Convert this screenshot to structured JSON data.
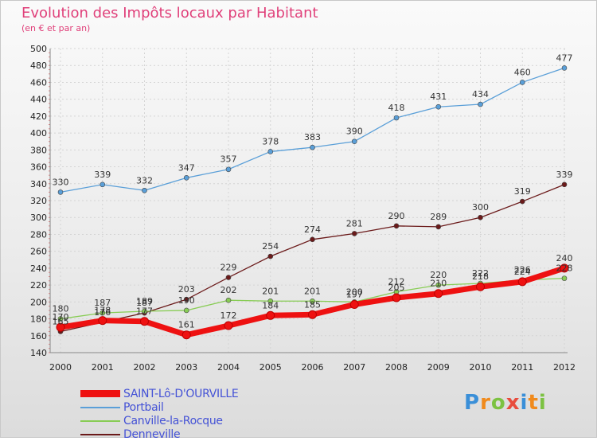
{
  "header": {
    "title": "Evolution des Impôts locaux par Habitant",
    "subtitle": "(en € et par an)"
  },
  "logo": {
    "text": "Proxiti",
    "colors": [
      "#3a8fd8",
      "#f08a1c",
      "#7cc242",
      "#e84c3d",
      "#3a8fd8",
      "#f08a1c",
      "#7cc242"
    ]
  },
  "chart_data": {
    "type": "line",
    "x": [
      "2000",
      "2001",
      "2002",
      "2003",
      "2004",
      "2005",
      "2006",
      "2007",
      "2008",
      "2009",
      "2010",
      "2011",
      "2012"
    ],
    "ylim": [
      140,
      500
    ],
    "ytick_step": 20,
    "grid": true,
    "legend_position": "bottom-left",
    "series": [
      {
        "name": "SAINT-Lô-D'OURVILLE",
        "color": "#ee1111",
        "values": [
          170,
          178,
          177,
          161,
          172,
          184,
          185,
          197,
          205,
          210,
          218,
          224,
          240
        ]
      },
      {
        "name": "Portbail",
        "color": "#5a9fd8",
        "values": [
          330,
          339,
          332,
          347,
          357,
          378,
          383,
          390,
          418,
          431,
          434,
          460,
          477
        ]
      },
      {
        "name": "Canville-la-Rocque",
        "color": "#88cc55",
        "values": [
          180,
          187,
          189,
          190,
          202,
          201,
          201,
          200,
          212,
          220,
          222,
          226,
          228
        ]
      },
      {
        "name": "Denneville",
        "color": "#6b1a1a",
        "values": [
          165,
          176,
          187,
          203,
          229,
          254,
          274,
          281,
          290,
          289,
          300,
          319,
          339
        ]
      }
    ]
  }
}
